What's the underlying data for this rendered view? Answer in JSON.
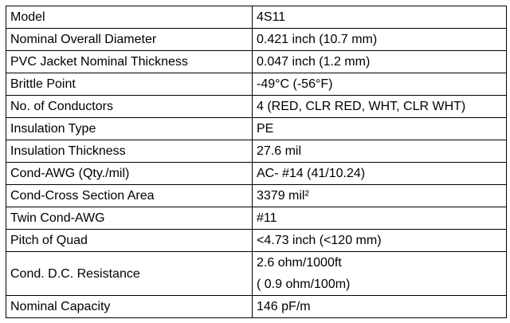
{
  "table": {
    "rows": [
      [
        "Model",
        [
          "4S11"
        ]
      ],
      [
        "Nominal Overall Diameter",
        [
          "0.421 inch (10.7 mm)"
        ]
      ],
      [
        "PVC Jacket Nominal Thickness",
        [
          "0.047 inch (1.2 mm)"
        ]
      ],
      [
        "Brittle Point",
        [
          "-49°C (-56°F)"
        ]
      ],
      [
        "No. of Conductors",
        [
          "4 (RED, CLR RED, WHT, CLR WHT)"
        ]
      ],
      [
        "Insulation Type",
        [
          "PE"
        ]
      ],
      [
        "Insulation Thickness",
        [
          "27.6 mil"
        ]
      ],
      [
        "Cond-AWG (Qty./mil)",
        [
          "AC- #14 (41/10.24)"
        ]
      ],
      [
        "Cond-Cross Section Area",
        [
          "3379 mil²"
        ]
      ],
      [
        "Twin Cond-AWG",
        [
          "#11"
        ]
      ],
      [
        "Pitch of Quad",
        [
          "<4.73 inch (<120 mm)"
        ]
      ],
      [
        "Cond. D.C. Resistance",
        [
          "2.6 ohm/1000ft",
          "( 0.9 ohm/100m)"
        ]
      ],
      [
        "Nominal Capacity",
        [
          "146 pF/m"
        ]
      ]
    ]
  }
}
